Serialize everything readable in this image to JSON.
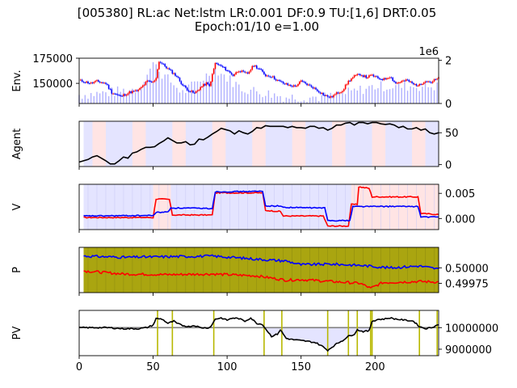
{
  "title_line1": "[005380] RL:ac Net:lstm LR:0.001 DF:0.9 TU:[1,6] DRT:0.05",
  "title_line2": "Epoch:01/10 e=1.00",
  "colors": {
    "red": "#ff0000",
    "blue": "#0000ff",
    "black": "#000000",
    "gray": "#808080",
    "olive": "#aaa510",
    "olive_line": "#b8b800",
    "bar": "#b0b0ff",
    "bg_red": "#ffe4e4",
    "bg_blue": "#e4e4ff"
  },
  "chart_data": [
    {
      "name": "env",
      "type": "candlestick+bar",
      "ylabel": "Env.",
      "left_ticks": [
        "150000",
        "175000"
      ],
      "left_tick_values": [
        150000,
        175000
      ],
      "right_ticks": [
        "0",
        "2"
      ],
      "right_tick_values": [
        0,
        2
      ],
      "offset_text": "1e6",
      "ylim": [
        130000,
        175000
      ],
      "volume_ylim": [
        0,
        2.1
      ],
      "price": [
        [
          0,
          153000
        ],
        [
          8,
          150000
        ],
        [
          12,
          152000
        ],
        [
          18,
          150000
        ],
        [
          22,
          141000
        ],
        [
          28,
          137000
        ],
        [
          34,
          141000
        ],
        [
          40,
          143000
        ],
        [
          46,
          152000
        ],
        [
          50,
          151000
        ],
        [
          52,
          156000
        ],
        [
          54,
          172000
        ],
        [
          58,
          167000
        ],
        [
          62,
          162000
        ],
        [
          66,
          157000
        ],
        [
          70,
          148000
        ],
        [
          74,
          143000
        ],
        [
          78,
          140000
        ],
        [
          82,
          146000
        ],
        [
          86,
          150000
        ],
        [
          88,
          147000
        ],
        [
          92,
          170000
        ],
        [
          96,
          167000
        ],
        [
          100,
          163000
        ],
        [
          104,
          158000
        ],
        [
          108,
          163000
        ],
        [
          112,
          160000
        ],
        [
          114,
          160000
        ],
        [
          118,
          168000
        ],
        [
          122,
          164000
        ],
        [
          126,
          158000
        ],
        [
          130,
          157000
        ],
        [
          134,
          153000
        ],
        [
          138,
          150000
        ],
        [
          142,
          148000
        ],
        [
          146,
          147000
        ],
        [
          150,
          152000
        ],
        [
          154,
          149000
        ],
        [
          158,
          146000
        ],
        [
          162,
          142000
        ],
        [
          166,
          138000
        ],
        [
          170,
          136000
        ],
        [
          174,
          140000
        ],
        [
          178,
          143000
        ],
        [
          182,
          152000
        ],
        [
          186,
          157000
        ],
        [
          190,
          159000
        ],
        [
          194,
          156000
        ],
        [
          198,
          158000
        ],
        [
          202,
          155000
        ],
        [
          206,
          154000
        ],
        [
          210,
          157000
        ],
        [
          214,
          150000
        ],
        [
          218,
          152000
        ],
        [
          222,
          153000
        ],
        [
          226,
          149000
        ],
        [
          230,
          148000
        ],
        [
          234,
          153000
        ],
        [
          238,
          151000
        ],
        [
          240,
          153000
        ],
        [
          243,
          155000
        ]
      ],
      "volume": [
        [
          0,
          0.4
        ],
        [
          20,
          0.5
        ],
        [
          40,
          0.7
        ],
        [
          52,
          2.0
        ],
        [
          54,
          1.5
        ],
        [
          70,
          0.5
        ],
        [
          92,
          1.6
        ],
        [
          110,
          0.7
        ],
        [
          140,
          0.3
        ],
        [
          170,
          0.3
        ],
        [
          200,
          0.8
        ],
        [
          243,
          0.8
        ]
      ]
    },
    {
      "name": "agent",
      "type": "line",
      "ylabel": "Agent",
      "ticks": [
        "0",
        "50"
      ],
      "tick_values": [
        0,
        50
      ],
      "ylim": [
        -3,
        68
      ],
      "series": [
        [
          0,
          4
        ],
        [
          3,
          6
        ],
        [
          6,
          8
        ],
        [
          9,
          12
        ],
        [
          12,
          14
        ],
        [
          15,
          10
        ],
        [
          18,
          6
        ],
        [
          21,
          1
        ],
        [
          24,
          1
        ],
        [
          27,
          6
        ],
        [
          30,
          12
        ],
        [
          33,
          10
        ],
        [
          36,
          18
        ],
        [
          39,
          20
        ],
        [
          42,
          24
        ],
        [
          45,
          27
        ],
        [
          48,
          27
        ],
        [
          51,
          28
        ],
        [
          54,
          33
        ],
        [
          57,
          37
        ],
        [
          60,
          42
        ],
        [
          63,
          38
        ],
        [
          66,
          34
        ],
        [
          69,
          34
        ],
        [
          72,
          36
        ],
        [
          75,
          31
        ],
        [
          78,
          32
        ],
        [
          81,
          40
        ],
        [
          84,
          39
        ],
        [
          87,
          43
        ],
        [
          90,
          48
        ],
        [
          93,
          52
        ],
        [
          96,
          57
        ],
        [
          99,
          55
        ],
        [
          102,
          53
        ],
        [
          105,
          48
        ],
        [
          108,
          53
        ],
        [
          111,
          50
        ],
        [
          114,
          48
        ],
        [
          117,
          52
        ],
        [
          120,
          58
        ],
        [
          123,
          57
        ],
        [
          126,
          61
        ],
        [
          129,
          60
        ],
        [
          132,
          60
        ],
        [
          135,
          60
        ],
        [
          138,
          60
        ],
        [
          141,
          58
        ],
        [
          144,
          60
        ],
        [
          147,
          58
        ],
        [
          150,
          58
        ],
        [
          153,
          57
        ],
        [
          156,
          60
        ],
        [
          159,
          60
        ],
        [
          162,
          57
        ],
        [
          165,
          58
        ],
        [
          168,
          54
        ],
        [
          171,
          57
        ],
        [
          174,
          62
        ],
        [
          177,
          62
        ],
        [
          180,
          65
        ],
        [
          183,
          66
        ],
        [
          186,
          62
        ],
        [
          189,
          66
        ],
        [
          192,
          66
        ],
        [
          195,
          64
        ],
        [
          198,
          66
        ],
        [
          201,
          66
        ],
        [
          204,
          64
        ],
        [
          207,
          63
        ],
        [
          210,
          64
        ],
        [
          213,
          62
        ],
        [
          216,
          58
        ],
        [
          219,
          60
        ],
        [
          222,
          56
        ],
        [
          225,
          56
        ],
        [
          228,
          58
        ],
        [
          231,
          54
        ],
        [
          234,
          56
        ],
        [
          237,
          50
        ],
        [
          240,
          48
        ],
        [
          243,
          50
        ]
      ]
    },
    {
      "name": "value",
      "type": "line",
      "ylabel": "V",
      "ticks": [
        "0.000",
        "0.005"
      ],
      "tick_values": [
        0.0,
        0.005
      ],
      "ylim": [
        -0.0022,
        0.0068
      ],
      "series": [
        {
          "color": "red",
          "points": [
            [
              3,
              0.0002
            ],
            [
              50,
              0.0002
            ],
            [
              52,
              0.0039
            ],
            [
              61,
              0.0038
            ],
            [
              63,
              0.0007
            ],
            [
              90,
              0.0007
            ],
            [
              92,
              0.0051
            ],
            [
              124,
              0.0051
            ],
            [
              126,
              0.0016
            ],
            [
              136,
              0.0014
            ],
            [
              138,
              0.0005
            ],
            [
              165,
              0.0005
            ],
            [
              168,
              -0.0015
            ],
            [
              182,
              -0.0015
            ],
            [
              184,
              0.0028
            ],
            [
              188,
              0.0028
            ],
            [
              189,
              0.0063
            ],
            [
              196,
              0.006
            ],
            [
              198,
              0.0043
            ],
            [
              229,
              0.0043
            ],
            [
              231,
              0.001
            ],
            [
              243,
              0.0008
            ]
          ]
        },
        {
          "color": "blue",
          "points": [
            [
              3,
              0.0005
            ],
            [
              50,
              0.0006
            ],
            [
              52,
              0.0012
            ],
            [
              60,
              0.0013
            ],
            [
              62,
              0.0021
            ],
            [
              90,
              0.002
            ],
            [
              92,
              0.0053
            ],
            [
              124,
              0.0054
            ],
            [
              126,
              0.0025
            ],
            [
              136,
              0.0025
            ],
            [
              138,
              0.0022
            ],
            [
              166,
              0.0021
            ],
            [
              168,
              -0.0004
            ],
            [
              183,
              -0.0004
            ],
            [
              185,
              0.0024
            ],
            [
              229,
              0.0024
            ],
            [
              231,
              0.0003
            ],
            [
              243,
              0.0003
            ]
          ]
        }
      ]
    },
    {
      "name": "policy",
      "type": "line",
      "ylabel": "P",
      "ticks": [
        "0.49975",
        "0.50000"
      ],
      "tick_values": [
        0.49975,
        0.5
      ],
      "ylim": [
        0.4996,
        0.50033
      ],
      "series": [
        {
          "color": "blue",
          "points": [
            [
              3,
              0.50019
            ],
            [
              30,
              0.50017
            ],
            [
              60,
              0.50018
            ],
            [
              90,
              0.50019
            ],
            [
              120,
              0.50014
            ],
            [
              140,
              0.50011
            ],
            [
              150,
              0.50005
            ],
            [
              170,
              0.50006
            ],
            [
              190,
              0.50004
            ],
            [
              210,
              0.5
            ],
            [
              230,
              0.50003
            ],
            [
              243,
              0.49998
            ]
          ]
        },
        {
          "color": "red",
          "points": [
            [
              3,
              0.49995
            ],
            [
              30,
              0.4999
            ],
            [
              60,
              0.49989
            ],
            [
              90,
              0.4999
            ],
            [
              120,
              0.49987
            ],
            [
              140,
              0.4998
            ],
            [
              150,
              0.49981
            ],
            [
              170,
              0.49978
            ],
            [
              190,
              0.49975
            ],
            [
              197,
              0.49967
            ],
            [
              205,
              0.49976
            ],
            [
              230,
              0.49978
            ],
            [
              243,
              0.49977
            ]
          ]
        }
      ]
    },
    {
      "name": "pv",
      "type": "line",
      "ylabel": "PV",
      "ticks": [
        "9000000",
        "10000000"
      ],
      "tick_values": [
        9000000,
        10000000
      ],
      "xticks": [
        "0",
        "50",
        "100",
        "150",
        "200"
      ],
      "xtick_values": [
        0,
        50,
        100,
        150,
        200
      ],
      "xlim": [
        0,
        243
      ],
      "ylim": [
        8700000,
        10800000
      ],
      "baseline": 10000000,
      "series": [
        [
          0,
          10000000
        ],
        [
          20,
          10000000
        ],
        [
          25,
          9970000
        ],
        [
          30,
          9950000
        ],
        [
          40,
          9950000
        ],
        [
          46,
          10010000
        ],
        [
          50,
          10120000
        ],
        [
          52,
          10420000
        ],
        [
          56,
          10400000
        ],
        [
          60,
          10200000
        ],
        [
          64,
          10300000
        ],
        [
          66,
          10200000
        ],
        [
          70,
          10100000
        ],
        [
          74,
          10050000
        ],
        [
          78,
          10100000
        ],
        [
          82,
          10000000
        ],
        [
          86,
          9990000
        ],
        [
          88,
          10000000
        ],
        [
          90,
          10150000
        ],
        [
          92,
          10400000
        ],
        [
          96,
          10450000
        ],
        [
          100,
          10350000
        ],
        [
          104,
          10450000
        ],
        [
          108,
          10420000
        ],
        [
          112,
          10300000
        ],
        [
          116,
          10450000
        ],
        [
          120,
          10200000
        ],
        [
          124,
          10150000
        ],
        [
          126,
          9950000
        ],
        [
          130,
          9600000
        ],
        [
          134,
          9700000
        ],
        [
          136,
          9900000
        ],
        [
          140,
          9500000
        ],
        [
          144,
          9450000
        ],
        [
          150,
          9400000
        ],
        [
          156,
          9350000
        ],
        [
          160,
          9300000
        ],
        [
          164,
          9150000
        ],
        [
          168,
          8950000
        ],
        [
          170,
          9050000
        ],
        [
          174,
          9250000
        ],
        [
          178,
          9400000
        ],
        [
          182,
          9600000
        ],
        [
          186,
          9700000
        ],
        [
          188,
          9900000
        ],
        [
          192,
          9820000
        ],
        [
          196,
          9850000
        ],
        [
          198,
          10300000
        ],
        [
          202,
          10380000
        ],
        [
          206,
          10400000
        ],
        [
          210,
          10450000
        ],
        [
          214,
          10400000
        ],
        [
          220,
          10350000
        ],
        [
          226,
          10300000
        ],
        [
          230,
          10050000
        ],
        [
          234,
          9960000
        ],
        [
          238,
          10000000
        ],
        [
          243,
          10150000
        ]
      ],
      "markers": [
        53,
        63,
        91,
        125,
        137,
        168,
        182,
        188,
        197,
        198,
        230,
        242
      ]
    }
  ]
}
